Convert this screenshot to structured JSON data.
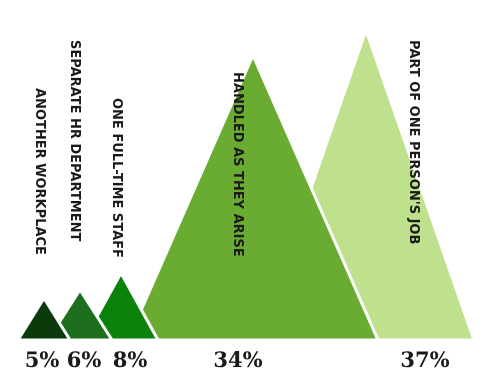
{
  "chart_data": {
    "type": "bar",
    "style": "triangle-peaks",
    "categories": [
      "ANOTHER WORKPLACE",
      "SEPARATE HR DEPARTMENT",
      "ONE FULL-TIME STAFF",
      "HANDLED AS THEY ARISE",
      "PART OF ONE PERSON'S JOB"
    ],
    "values": [
      5,
      6,
      8,
      34,
      37
    ],
    "value_labels": [
      "5%",
      "6%",
      "8%",
      "34%",
      "37%"
    ],
    "colors": [
      "#0b3a0b",
      "#1d6e1d",
      "#0a820a",
      "#6aab32",
      "#bfe08d"
    ],
    "title": "",
    "xlabel": "",
    "ylabel": "",
    "ylim": [
      0,
      40
    ],
    "grid": false,
    "legend": "none"
  }
}
